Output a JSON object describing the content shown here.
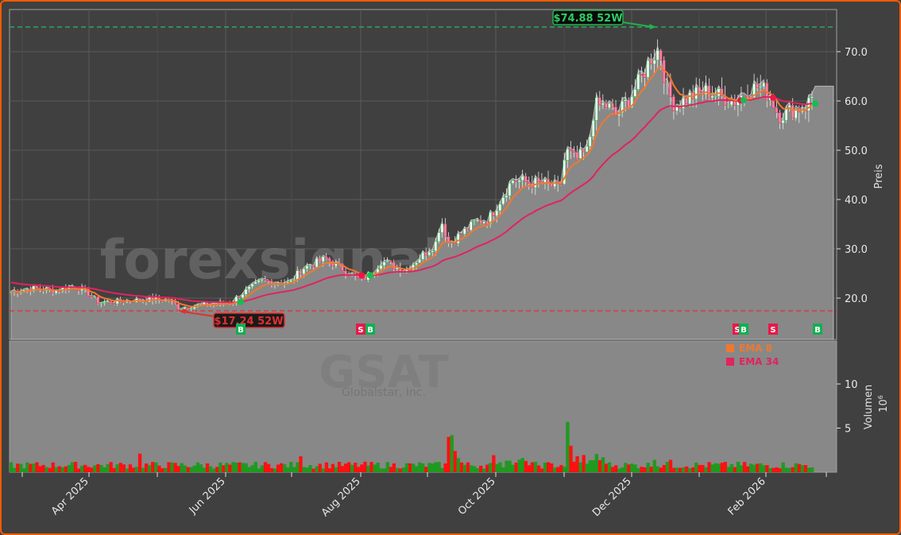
{
  "chart_data": {
    "type": "candlestick",
    "ticker": "GSAT",
    "company": "Globalstar, Inc.",
    "watermark": "forexsignale.trade",
    "title": "",
    "xlabel": "",
    "ylabel_price": "Preis",
    "ylabel_volume": "Volumen",
    "volume_exponent": "10^6",
    "price_ylim": [
      13.5,
      78.5
    ],
    "price_yticks": [
      "20.0",
      "30.0",
      "40.0",
      "50.0",
      "60.0",
      "70.0"
    ],
    "volume_yticks": [
      "5",
      "10"
    ],
    "x_ticks": [
      "Apr 2025",
      "Jun 2025",
      "Aug 2025",
      "Oct 2025",
      "Dec 2025",
      "Feb 2026"
    ],
    "high_52w": {
      "value": 74.88,
      "label": "$74.88 52W",
      "color": "#22b14c"
    },
    "low_52w": {
      "value": 17.24,
      "label": "$17.24 52W",
      "color": "#e03030"
    },
    "legend": [
      {
        "name": "EMA 8",
        "color": "#f07830"
      },
      {
        "name": "EMA 34",
        "color": "#e0245e"
      }
    ],
    "signals": [
      {
        "type": "B",
        "date": "2025-06-01",
        "color": "#10b050"
      },
      {
        "type": "S",
        "date": "2025-08-01",
        "color": "#e8184a"
      },
      {
        "type": "B",
        "date": "2025-08-04",
        "color": "#10b050"
      },
      {
        "type": "S",
        "date": "2026-01-20",
        "color": "#e8184a"
      },
      {
        "type": "B",
        "date": "2026-01-21",
        "color": "#10b050"
      },
      {
        "type": "S",
        "date": "2026-02-04",
        "color": "#e8184a"
      },
      {
        "type": "B",
        "date": "2026-02-26",
        "color": "#10b050"
      }
    ],
    "close_series_approx": {
      "dates": [
        "2025-03",
        "2025-04",
        "2025-05",
        "2025-06",
        "2025-07",
        "2025-08",
        "2025-09",
        "2025-10",
        "2025-11",
        "2025-12",
        "2026-01",
        "2026-02",
        "2026-03"
      ],
      "close": [
        21.5,
        21.0,
        19.0,
        19.5,
        23.5,
        25.0,
        30.0,
        43.0,
        48.0,
        70.0,
        62.0,
        60.0,
        63.0
      ]
    },
    "ema8_approx": [
      21.5,
      21.8,
      19.5,
      19.5,
      23.0,
      24.5,
      29.0,
      42.0,
      47.0,
      68.0,
      62.5,
      59.5,
      61.0
    ],
    "ema34_approx": [
      24.0,
      22.5,
      20.5,
      19.5,
      21.5,
      24.0,
      27.5,
      34.0,
      41.0,
      56.0,
      61.0,
      61.5,
      60.5
    ],
    "volume_peak_millions": 5.7
  }
}
